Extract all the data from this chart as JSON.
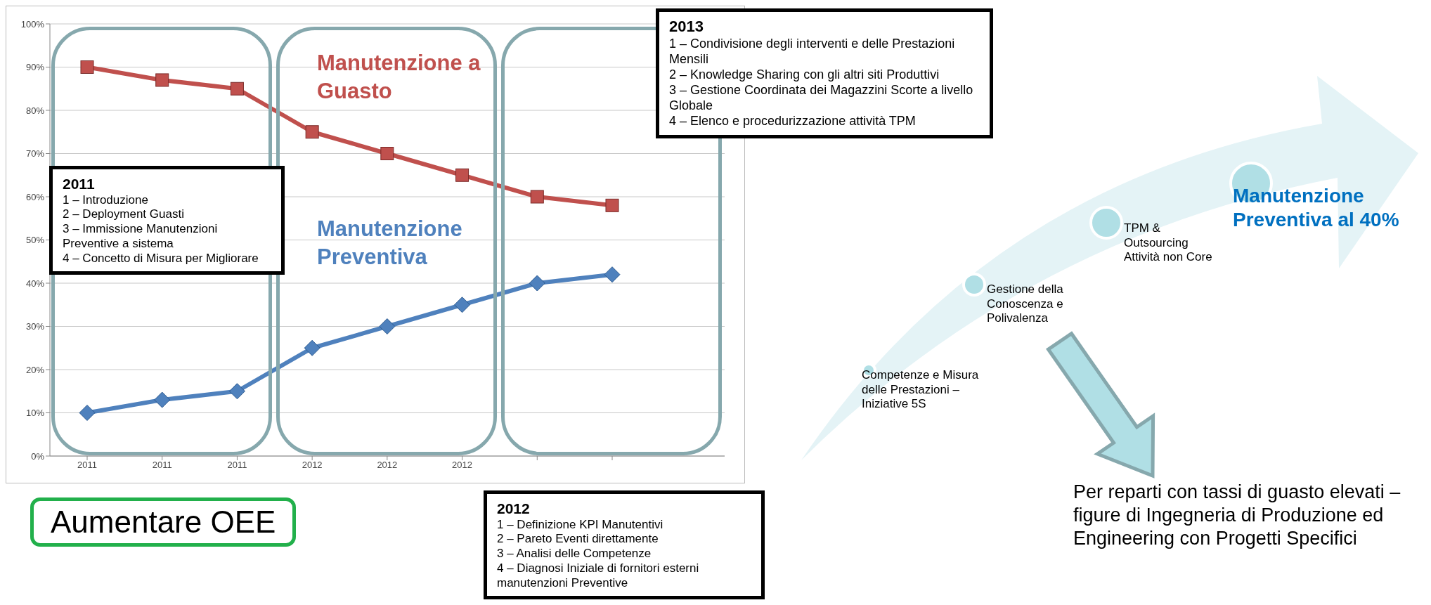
{
  "chart_data": {
    "type": "line",
    "categories": [
      "2011",
      "2011",
      "2011",
      "2012",
      "2012",
      "2012",
      null,
      null
    ],
    "series": [
      {
        "name": "Manutenzione a Guasto",
        "color": "#c0504d",
        "marker": "square",
        "values": [
          90,
          87,
          85,
          75,
          70,
          65,
          60,
          58
        ]
      },
      {
        "name": "Manutenzione Preventiva",
        "color": "#4f81bd",
        "marker": "diamond",
        "values": [
          10,
          13,
          15,
          25,
          30,
          35,
          40,
          42
        ]
      }
    ],
    "ylim": [
      0,
      100
    ],
    "yticks": [
      {
        "value": 0,
        "label": "0%"
      },
      {
        "value": 10,
        "label": "10%"
      },
      {
        "value": 20,
        "label": "20%"
      },
      {
        "value": 30,
        "label": "30%"
      },
      {
        "value": 40,
        "label": "40%"
      },
      {
        "value": 50,
        "label": "50%"
      },
      {
        "value": 60,
        "label": "60%"
      },
      {
        "value": 70,
        "label": "70%"
      },
      {
        "value": 80,
        "label": "80%"
      },
      {
        "value": 90,
        "label": "90%"
      },
      {
        "value": 100,
        "label": "100%"
      }
    ],
    "grid": "y",
    "annotations": [
      "2011\n1 – Introduzione\n2 – Deployment Guasti\n3 – Immissione Manutenzioni Preventive a sistema\n4 – Concetto di Misura per Migliorare",
      "2012\n1 – Definizione KPI Manutentivi\n2 – Pareto Eventi direttamente\n3 – Analisi delle Competenze\n4 – Diagnosi Iniziale di fornitori esterni manutenzioni Preventive",
      "2013\n1 – Condivisione degli interventi e delle Prestazioni Mensili\n2 – Knowledge Sharing con gli altri siti Produttivi\n3 – Gestione Coordinata dei Magazzini Scorte a livello Globale\n4 – Elenco e procedurizzazione attività TPM",
      "Competenze e Misura delle Prestazioni – Iniziative 5S",
      "Gestione della Conoscenza e Polivalenza",
      "TPM & Outsourcing Attività non Core",
      "Manutenzione Preventiva al 40%",
      "Per reparti con tassi di guasto elevati – figure di Ingegneria di Produzione ed Engineering con Progetti Specifici",
      "Aumentare OEE"
    ]
  }
}
